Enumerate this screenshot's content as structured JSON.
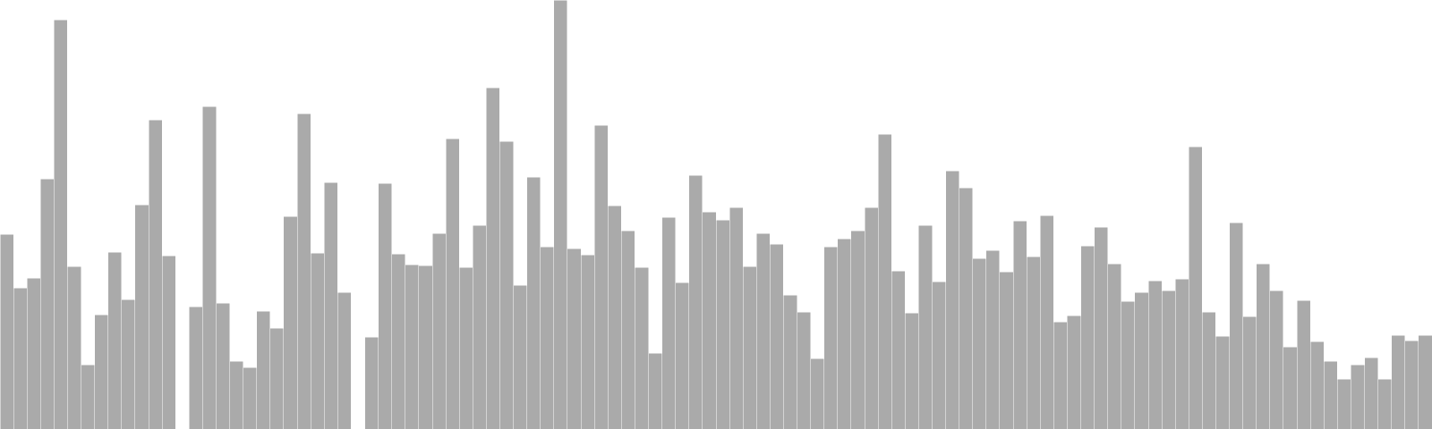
{
  "chart_data": {
    "type": "bar",
    "title": "",
    "xlabel": "",
    "ylabel": "",
    "grid": false,
    "legend": "none",
    "ylim": [
      0,
      480
    ],
    "bar_color": "#aaaaaa",
    "bar_edge_color": "#ffffff",
    "values": [
      218,
      158,
      169,
      280,
      458,
      182,
      72,
      128,
      198,
      145,
      251,
      346,
      194,
      0,
      137,
      361,
      141,
      76,
      69,
      132,
      113,
      238,
      353,
      197,
      276,
      153,
      0,
      103,
      275,
      196,
      184,
      183,
      219,
      325,
      181,
      228,
      382,
      322,
      161,
      282,
      204,
      480,
      202,
      195,
      340,
      250,
      222,
      181,
      85,
      237,
      164,
      284,
      243,
      234,
      248,
      182,
      219,
      207,
      150,
      131,
      79,
      204,
      213,
      222,
      248,
      330,
      177,
      130,
      228,
      165,
      289,
      270,
      191,
      200,
      176,
      233,
      193,
      239,
      120,
      127,
      205,
      226,
      185,
      143,
      153,
      166,
      155,
      168,
      316,
      131,
      104,
      231,
      126,
      185,
      155,
      92,
      144,
      98,
      76,
      56,
      72,
      80,
      56,
      105,
      99,
      105
    ]
  }
}
